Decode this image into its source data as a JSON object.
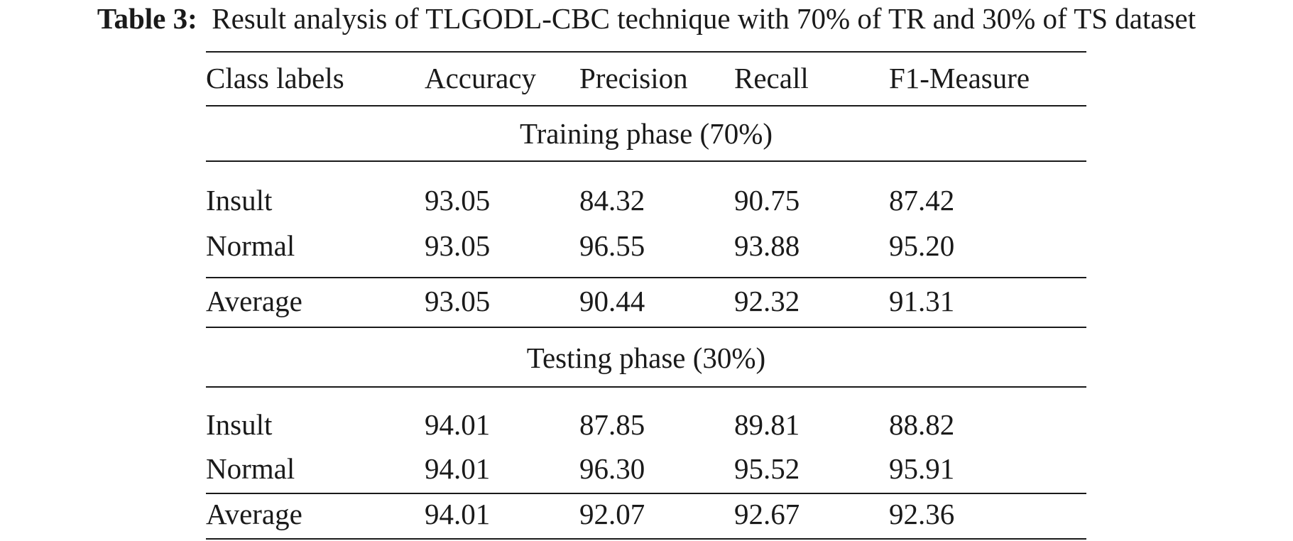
{
  "caption": {
    "label": "Table 3:",
    "text": "Result analysis of TLGODL-CBC technique with 70% of TR and 30% of TS dataset"
  },
  "table": {
    "columns": [
      "Class labels",
      "Accuracy",
      "Precision",
      "Recall",
      "F1-Measure"
    ],
    "sections": [
      {
        "title": "Training phase (70%)",
        "rows": [
          [
            "Insult",
            "93.05",
            "84.32",
            "90.75",
            "87.42"
          ],
          [
            "Normal",
            "93.05",
            "96.55",
            "93.88",
            "95.20"
          ]
        ],
        "average": [
          "Average",
          "93.05",
          "90.44",
          "92.32",
          "91.31"
        ]
      },
      {
        "title": "Testing phase (30%)",
        "rows": [
          [
            "Insult",
            "94.01",
            "87.85",
            "89.81",
            "88.82"
          ],
          [
            "Normal",
            "94.01",
            "96.30",
            "95.52",
            "95.91"
          ]
        ],
        "average": [
          "Average",
          "94.01",
          "92.07",
          "92.67",
          "92.36"
        ]
      }
    ]
  }
}
